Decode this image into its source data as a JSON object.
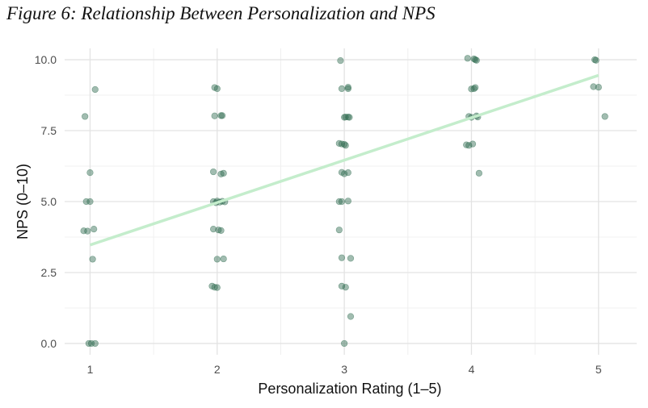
{
  "figure": {
    "title": "Figure 6: Relationship Between Personalization and NPS"
  },
  "chart_data": {
    "type": "scatter",
    "title": "",
    "xlabel": "Personalization Rating (1–5)",
    "ylabel": "NPS (0–10)",
    "xlim": [
      0.8,
      5.3
    ],
    "ylim": [
      -0.4,
      10.4
    ],
    "x_ticks": [
      1,
      2,
      3,
      4,
      5
    ],
    "x_tick_labels": [
      "1",
      "2",
      "3",
      "4",
      "5"
    ],
    "y_ticks": [
      0,
      2.5,
      5,
      7.5,
      10
    ],
    "y_tick_labels": [
      "0.0",
      "2.5",
      "5.0",
      "7.5",
      "10.0"
    ],
    "grid": true,
    "legend": "none",
    "point_color": "#2e6b4f",
    "trend_color": "#c4edcc",
    "points": [
      {
        "x": 1.04,
        "y": 8.95
      },
      {
        "x": 0.96,
        "y": 8.0
      },
      {
        "x": 1.0,
        "y": 6.02
      },
      {
        "x": 0.97,
        "y": 5.0
      },
      {
        "x": 1.0,
        "y": 5.0
      },
      {
        "x": 0.95,
        "y": 3.97
      },
      {
        "x": 0.98,
        "y": 3.96
      },
      {
        "x": 1.03,
        "y": 4.03
      },
      {
        "x": 1.02,
        "y": 2.97
      },
      {
        "x": 0.99,
        "y": 0.0
      },
      {
        "x": 1.01,
        "y": 0.0
      },
      {
        "x": 1.04,
        "y": 0.0
      },
      {
        "x": 1.98,
        "y": 9.02
      },
      {
        "x": 2.0,
        "y": 8.98
      },
      {
        "x": 1.98,
        "y": 8.02
      },
      {
        "x": 2.03,
        "y": 8.03
      },
      {
        "x": 2.04,
        "y": 8.03
      },
      {
        "x": 1.97,
        "y": 6.05
      },
      {
        "x": 2.03,
        "y": 5.97
      },
      {
        "x": 2.05,
        "y": 6.0
      },
      {
        "x": 1.97,
        "y": 5.0
      },
      {
        "x": 1.99,
        "y": 4.96
      },
      {
        "x": 2.0,
        "y": 5.02
      },
      {
        "x": 2.02,
        "y": 4.98
      },
      {
        "x": 2.04,
        "y": 5.01
      },
      {
        "x": 2.06,
        "y": 4.99
      },
      {
        "x": 1.97,
        "y": 4.03
      },
      {
        "x": 2.01,
        "y": 4.0
      },
      {
        "x": 2.03,
        "y": 3.98
      },
      {
        "x": 2.0,
        "y": 2.97
      },
      {
        "x": 2.05,
        "y": 2.98
      },
      {
        "x": 1.96,
        "y": 2.02
      },
      {
        "x": 1.98,
        "y": 1.98
      },
      {
        "x": 2.0,
        "y": 1.97
      },
      {
        "x": 2.97,
        "y": 9.97
      },
      {
        "x": 2.98,
        "y": 8.98
      },
      {
        "x": 3.03,
        "y": 8.98
      },
      {
        "x": 3.03,
        "y": 9.03
      },
      {
        "x": 3.0,
        "y": 7.97
      },
      {
        "x": 3.01,
        "y": 7.98
      },
      {
        "x": 3.03,
        "y": 7.98
      },
      {
        "x": 3.04,
        "y": 7.97
      },
      {
        "x": 2.96,
        "y": 7.05
      },
      {
        "x": 2.98,
        "y": 7.03
      },
      {
        "x": 3.0,
        "y": 7.02
      },
      {
        "x": 3.01,
        "y": 6.98
      },
      {
        "x": 2.98,
        "y": 6.03
      },
      {
        "x": 3.0,
        "y": 5.98
      },
      {
        "x": 3.03,
        "y": 6.02
      },
      {
        "x": 2.96,
        "y": 5.0
      },
      {
        "x": 2.98,
        "y": 5.0
      },
      {
        "x": 3.03,
        "y": 5.02
      },
      {
        "x": 2.96,
        "y": 4.0
      },
      {
        "x": 2.98,
        "y": 3.02
      },
      {
        "x": 3.05,
        "y": 3.0
      },
      {
        "x": 2.98,
        "y": 2.02
      },
      {
        "x": 3.01,
        "y": 1.98
      },
      {
        "x": 3.05,
        "y": 0.95
      },
      {
        "x": 3.0,
        "y": 0.0
      },
      {
        "x": 3.97,
        "y": 10.05
      },
      {
        "x": 4.02,
        "y": 10.03
      },
      {
        "x": 4.03,
        "y": 10.0
      },
      {
        "x": 4.04,
        "y": 9.98
      },
      {
        "x": 4.0,
        "y": 8.97
      },
      {
        "x": 4.02,
        "y": 8.98
      },
      {
        "x": 4.03,
        "y": 9.02
      },
      {
        "x": 3.98,
        "y": 8.0
      },
      {
        "x": 4.0,
        "y": 7.97
      },
      {
        "x": 4.04,
        "y": 8.02
      },
      {
        "x": 4.05,
        "y": 7.98
      },
      {
        "x": 3.96,
        "y": 7.0
      },
      {
        "x": 3.98,
        "y": 6.98
      },
      {
        "x": 4.01,
        "y": 7.03
      },
      {
        "x": 4.06,
        "y": 6.0
      },
      {
        "x": 4.97,
        "y": 10.0
      },
      {
        "x": 4.98,
        "y": 9.98
      },
      {
        "x": 4.96,
        "y": 9.05
      },
      {
        "x": 5.0,
        "y": 9.03
      },
      {
        "x": 5.05,
        "y": 8.0
      }
    ],
    "trend_line": {
      "x": [
        1,
        5
      ],
      "y": [
        3.47,
        9.45
      ]
    }
  }
}
